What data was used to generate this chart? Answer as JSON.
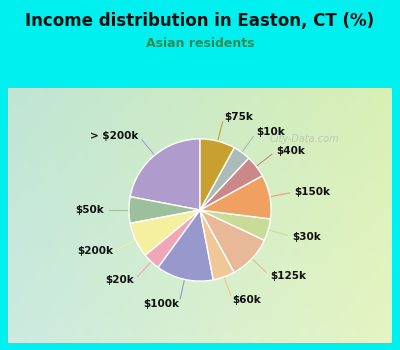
{
  "title": "Income distribution in Easton, CT (%)",
  "subtitle": "Asian residents",
  "title_color": "#111111",
  "subtitle_color": "#2e8b57",
  "background_cyan": "#00f0f0",
  "background_panel_tl": "#d0ede8",
  "background_panel_br": "#e8f0e0",
  "watermark": "City-Data.com",
  "labels": [
    "> $200k",
    "$50k",
    "$200k",
    "$20k",
    "$100k",
    "$60k",
    "$125k",
    "$30k",
    "$150k",
    "$40k",
    "$10k",
    "$75k"
  ],
  "values": [
    22,
    6,
    8,
    4,
    13,
    5,
    10,
    5,
    10,
    5,
    4,
    8
  ],
  "colors": [
    "#b09ccc",
    "#9cbf9c",
    "#f5f0a0",
    "#f0a8b8",
    "#9898cc",
    "#f0c898",
    "#e8b898",
    "#c8dc98",
    "#f0a060",
    "#cc8888",
    "#aabbb8",
    "#c8a030"
  ],
  "label_fontsize": 7.5,
  "startangle": 90,
  "title_fontsize": 12,
  "subtitle_fontsize": 9
}
